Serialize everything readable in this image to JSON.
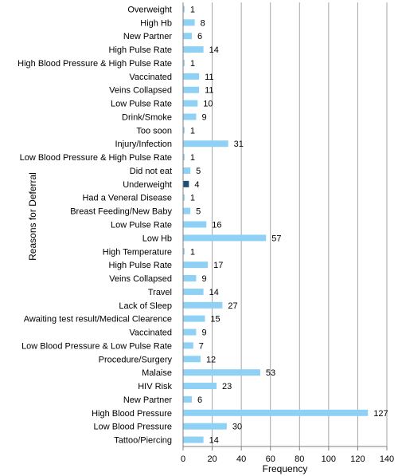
{
  "chart_data": {
    "type": "bar",
    "orientation": "horizontal",
    "xlabel": "Frequency",
    "ylabel": "Reasons for Deferral",
    "xlim": [
      0,
      140
    ],
    "xticks": [
      0,
      20,
      40,
      60,
      80,
      100,
      120,
      140
    ],
    "grid": "vertical",
    "legend": "none",
    "bar_color": "#8fd0f5",
    "highlight_color": "#1f4e79",
    "categories": [
      "Overweight",
      "High Hb",
      "New Partner",
      "High Pulse Rate",
      "High Blood Pressure & High Pulse Rate",
      "Vaccinated",
      "Veins Collapsed",
      "Low Pulse Rate",
      "Drink/Smoke",
      "Too soon",
      "Injury/Infection",
      "Low Blood Pressure & High Pulse Rate",
      "Did not eat",
      "Underweight",
      "Had a Veneral Disease",
      "Breast Feeding/New Baby",
      "Low Pulse Rate",
      "Low Hb",
      "High Temperature",
      "High Pulse Rate",
      "Veins Collapsed",
      "Travel",
      "Lack of Sleep",
      "Awaiting test result/Medical Clearence",
      "Vaccinated",
      "Low Blood Pressure & Low Pulse Rate",
      "Procedure/Surgery",
      "Malaise",
      "HIV Risk",
      "New Partner",
      "High Blood Pressure",
      "Low Blood Pressure",
      "Tattoo/Piercing"
    ],
    "values": [
      1,
      8,
      6,
      14,
      1,
      11,
      11,
      10,
      9,
      1,
      31,
      1,
      5,
      4,
      1,
      5,
      16,
      57,
      1,
      17,
      9,
      14,
      27,
      15,
      9,
      7,
      12,
      53,
      23,
      6,
      127,
      30,
      14
    ],
    "highlighted_categories": [
      "Underweight"
    ]
  }
}
